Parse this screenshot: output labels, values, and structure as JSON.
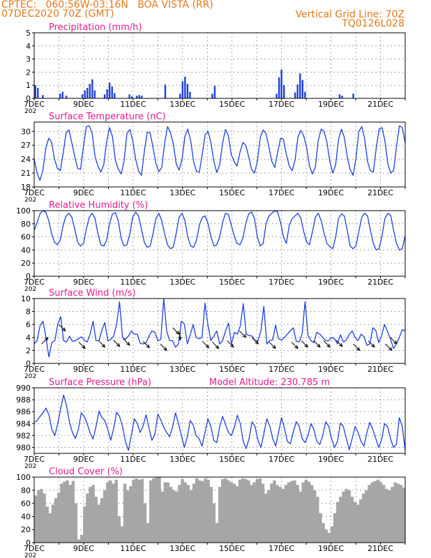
{
  "header": {
    "station_line": "CPTEC:   060:56W-03:16N   BOA VISTA (RR)",
    "date_line": "07DEC2020 70Z (GMT)",
    "grid_note": "Vertical Grid Line: 70Z",
    "model_code": "TQ0126L028"
  },
  "x_ticks": [
    "7DEC",
    "9DEC",
    "11DEC",
    "13DEC",
    "15DEC",
    "17DEC",
    "19DEC",
    "21DEC"
  ],
  "year_fragment": "202",
  "colors": {
    "header": "#e07a1a",
    "title": "#e8198b",
    "series": "#1f3fdc",
    "cloud": "#a6a6a6"
  },
  "chart_data": [
    {
      "type": "bar",
      "title": "Precipitation (mm/h)",
      "ylim": [
        0,
        5
      ],
      "yticks": [
        0,
        1,
        2,
        3,
        4,
        5
      ],
      "x_unit": "days since 7DEC",
      "bars": [
        [
          0.05,
          1.0
        ],
        [
          0.15,
          0.8
        ],
        [
          0.35,
          0.25
        ],
        [
          1.05,
          0.35
        ],
        [
          1.15,
          0.5
        ],
        [
          1.3,
          0.2
        ],
        [
          1.95,
          0.3
        ],
        [
          2.05,
          0.6
        ],
        [
          2.15,
          0.8
        ],
        [
          2.25,
          1.1
        ],
        [
          2.35,
          1.45
        ],
        [
          2.45,
          0.6
        ],
        [
          2.85,
          0.3
        ],
        [
          2.95,
          0.7
        ],
        [
          3.05,
          1.2
        ],
        [
          3.15,
          0.9
        ],
        [
          3.25,
          0.4
        ],
        [
          3.85,
          0.3
        ],
        [
          3.95,
          0.15
        ],
        [
          4.15,
          0.2
        ],
        [
          4.25,
          0.25
        ],
        [
          4.35,
          0.2
        ],
        [
          5.3,
          1.05
        ],
        [
          5.9,
          0.35
        ],
        [
          6.0,
          1.3
        ],
        [
          6.1,
          1.65
        ],
        [
          6.2,
          1.1
        ],
        [
          6.3,
          0.5
        ],
        [
          7.2,
          0.35
        ],
        [
          7.3,
          0.95
        ],
        [
          9.8,
          0.35
        ],
        [
          9.9,
          1.6
        ],
        [
          10.0,
          2.2
        ],
        [
          10.1,
          1.0
        ],
        [
          10.55,
          0.45
        ],
        [
          10.65,
          1.05
        ],
        [
          10.75,
          1.9
        ],
        [
          10.85,
          1.4
        ],
        [
          10.95,
          0.5
        ],
        [
          12.35,
          0.3
        ],
        [
          12.45,
          0.2
        ],
        [
          12.9,
          0.35
        ]
      ]
    },
    {
      "type": "line",
      "title": "Surface Temperature (nC)",
      "ylim": [
        18,
        32
      ],
      "yticks": [
        18,
        21,
        24,
        27,
        30
      ],
      "values": [
        24.0,
        21.0,
        19.4,
        21.6,
        26.3,
        28.5,
        27.7,
        24.0,
        22.0,
        21.5,
        25.3,
        29.6,
        30.3,
        27.5,
        24.5,
        22.0,
        21.8,
        26.8,
        31.0,
        31.2,
        29.6,
        24.5,
        22.5,
        21.2,
        22.8,
        27.8,
        30.8,
        28.9,
        23.8,
        21.9,
        20.8,
        23.5,
        29.5,
        30.4,
        28.0,
        24.0,
        21.5,
        20.5,
        25.6,
        29.8,
        29.7,
        26.5,
        23.0,
        21.3,
        22.2,
        27.3,
        31.0,
        29.8,
        27.3,
        23.0,
        21.6,
        23.9,
        28.9,
        30.5,
        28.0,
        23.5,
        21.3,
        21.2,
        25.2,
        29.3,
        30.0,
        27.5,
        23.5,
        21.1,
        22.8,
        27.5,
        30.4,
        29.0,
        25.0,
        23.5,
        22.5,
        25.5,
        27.6,
        27.0,
        24.5,
        21.8,
        21.0,
        23.5,
        28.7,
        30.3,
        29.5,
        26.5,
        23.5,
        22.2,
        25.5,
        28.5,
        28.3,
        25.0,
        22.5,
        21.5,
        23.8,
        28.8,
        30.2,
        29.0,
        26.5,
        22.5,
        20.8,
        22.3,
        28.0,
        30.5,
        30.0,
        27.6,
        23.5,
        21.0,
        22.8,
        28.3,
        30.5,
        28.7,
        24.5,
        21.8,
        20.5,
        24.0,
        30.0,
        31.0,
        28.5,
        23.5,
        21.5,
        21.2,
        26.3,
        30.5,
        30.8,
        28.0,
        23.0,
        21.0,
        21.5,
        26.7,
        31.2,
        30.8,
        27.5
      ]
    },
    {
      "type": "line",
      "title": "Relative Humidity (%)",
      "ylim": [
        0,
        100
      ],
      "yticks": [
        0,
        20,
        40,
        60,
        80,
        100
      ],
      "values": [
        70,
        82,
        95,
        100,
        98,
        85,
        65,
        52,
        48,
        55,
        78,
        92,
        96,
        90,
        72,
        52,
        46,
        50,
        72,
        90,
        96,
        88,
        65,
        48,
        46,
        55,
        80,
        95,
        97,
        85,
        58,
        46,
        48,
        65,
        90,
        98,
        92,
        72,
        52,
        44,
        46,
        65,
        88,
        96,
        85,
        65,
        48,
        42,
        44,
        66,
        90,
        96,
        85,
        60,
        46,
        44,
        55,
        78,
        90,
        92,
        80,
        60,
        46,
        48,
        60,
        82,
        96,
        94,
        78,
        62,
        50,
        48,
        58,
        80,
        95,
        98,
        88,
        60,
        46,
        50,
        80,
        92,
        96,
        100,
        98,
        82,
        60,
        50,
        78,
        88,
        92,
        96,
        88,
        68,
        52,
        48,
        68,
        90,
        96,
        85,
        66,
        50,
        45,
        42,
        60,
        88,
        95,
        92,
        70,
        46,
        42,
        46,
        68,
        90,
        96,
        92,
        70,
        50,
        40,
        42,
        62,
        88,
        96,
        93,
        70,
        50,
        40,
        42,
        62
      ]
    },
    {
      "type": "line",
      "title": "Surface Wind (m/s)",
      "ylim": [
        0,
        10
      ],
      "yticks": [
        0,
        2,
        4,
        6,
        8,
        10
      ],
      "values": [
        3.0,
        3.5,
        5.8,
        6.5,
        4.0,
        1.0,
        3.2,
        3.5,
        6.0,
        7.2,
        3.5,
        3.3,
        4.2,
        3.4,
        3.5,
        3.8,
        4.1,
        3.6,
        3.3,
        4.5,
        6.5,
        3.5,
        3.5,
        5.1,
        6.3,
        3.5,
        3.7,
        4.2,
        6.0,
        9.5,
        4.0,
        3.7,
        4.2,
        5.0,
        4.5,
        4.5,
        3.1,
        3.0,
        3.2,
        4.2,
        5.0,
        4.8,
        3.5,
        3.7,
        10.0,
        5.0,
        3.5,
        3.5,
        2.5,
        3.0,
        6.5,
        6.1,
        3.0,
        4.4,
        6.0,
        4.0,
        3.8,
        4.0,
        9.3,
        6.0,
        3.5,
        4.2,
        5.0,
        3.0,
        3.5,
        5.0,
        6.2,
        3.0,
        4.8,
        4.5,
        5.8,
        9.2,
        4.5,
        4.3,
        4.2,
        3.5,
        3.5,
        5.0,
        8.8,
        3.0,
        3.5,
        3.6,
        5.9,
        3.8,
        3.6,
        4.0,
        4.5,
        5.0,
        5.5,
        3.4,
        3.3,
        4.5,
        9.5,
        4.3,
        3.5,
        3.2,
        4.8,
        4.5,
        4.0,
        3.5,
        3.5,
        4.0,
        3.8,
        3.0,
        4.4,
        3.3,
        3.6,
        4.5,
        5.0,
        4.0,
        3.5,
        4.5,
        4.1,
        2.8,
        3.0,
        5.5,
        5.1,
        3.2,
        4.3,
        6.0,
        4.9,
        3.8,
        2.3,
        3.0,
        4.0,
        5.2,
        5.0
      ],
      "wind_vectors": [
        [
          0.3,
          3.0,
          45
        ],
        [
          1.0,
          6.0,
          315
        ],
        [
          1.8,
          3.3,
          315
        ],
        [
          2.6,
          3.5,
          315
        ],
        [
          3.2,
          3.6,
          315
        ],
        [
          3.6,
          3.8,
          315
        ],
        [
          4.4,
          3.4,
          315
        ],
        [
          5.1,
          3.0,
          315
        ],
        [
          5.6,
          5.5,
          315
        ],
        [
          5.9,
          5.0,
          270
        ],
        [
          6.8,
          3.4,
          315
        ],
        [
          7.2,
          3.3,
          315
        ],
        [
          7.8,
          3.5,
          315
        ],
        [
          8.3,
          5.0,
          315
        ],
        [
          8.8,
          4.0,
          315
        ],
        [
          9.5,
          3.3,
          315
        ],
        [
          10.4,
          3.3,
          315
        ],
        [
          10.8,
          3.5,
          315
        ],
        [
          11.3,
          3.5,
          315
        ],
        [
          11.7,
          3.5,
          315
        ],
        [
          12.2,
          3.6,
          315
        ],
        [
          12.9,
          3.0,
          315
        ],
        [
          13.5,
          3.5,
          315
        ],
        [
          14.2,
          3.0,
          315
        ],
        [
          14.4,
          4.0,
          315
        ]
      ]
    },
    {
      "type": "line",
      "title": "Surface Pressure (hPa)",
      "annotation": "Model Altitude: 230.785 m",
      "ylim": [
        979,
        990
      ],
      "yticks": [
        980,
        982,
        984,
        986,
        988,
        990
      ],
      "values": [
        984.2,
        984.5,
        985.2,
        985.8,
        986.6,
        985.5,
        983.0,
        982.0,
        984.0,
        986.5,
        988.8,
        987.0,
        984.2,
        982.5,
        981.5,
        983.0,
        985.8,
        985.2,
        984.0,
        982.4,
        981.4,
        983.5,
        986.1,
        985.0,
        984.5,
        983.0,
        981.2,
        983.2,
        985.9,
        985.2,
        983.5,
        981.0,
        979.5,
        982.0,
        984.8,
        984.0,
        982.5,
        983.6,
        985.5,
        983.2,
        981.2,
        982.2,
        985.6,
        984.6,
        983.4,
        982.5,
        981.8,
        983.4,
        985.8,
        984.0,
        982.0,
        980.0,
        981.8,
        984.5,
        983.8,
        982.0,
        981.5,
        980.2,
        982.5,
        984.8,
        983.5,
        981.2,
        980.8,
        983.5,
        985.2,
        983.8,
        982.5,
        982.0,
        983.4,
        985.4,
        984.0,
        981.0,
        979.8,
        981.5,
        984.3,
        983.5,
        981.2,
        980.0,
        982.3,
        984.8,
        983.6,
        981.5,
        980.2,
        982.5,
        985.0,
        983.2,
        981.0,
        980.6,
        982.6,
        984.3,
        983.5,
        981.5,
        980.8,
        982.0,
        984.0,
        983.0,
        981.0,
        980.5,
        982.0,
        984.3,
        983.6,
        981.5,
        980.0,
        981.0,
        984.1,
        983.5,
        981.5,
        979.6,
        981.5,
        983.5,
        982.5,
        981.0,
        980.2,
        982.5,
        984.2,
        983.0,
        981.5,
        980.0,
        981.3,
        984.0,
        983.5,
        981.5,
        980.0,
        980.5,
        985.0,
        983.5,
        979.5
      ]
    },
    {
      "type": "area",
      "title": "Cloud Cover (%)",
      "ylim": [
        0,
        100
      ],
      "yticks": [
        0,
        20,
        40,
        60,
        80,
        100
      ],
      "values": [
        72,
        80,
        82,
        75,
        55,
        45,
        58,
        68,
        76,
        90,
        93,
        95,
        88,
        94,
        60,
        5,
        12,
        55,
        75,
        85,
        88,
        70,
        58,
        68,
        80,
        92,
        95,
        90,
        96,
        40,
        25,
        90,
        80,
        86,
        96,
        98,
        96,
        97,
        60,
        30,
        95,
        98,
        100,
        100,
        78,
        92,
        92,
        85,
        80,
        78,
        88,
        97,
        92,
        88,
        80,
        90,
        98,
        95,
        94,
        98,
        96,
        85,
        60,
        30,
        85,
        97,
        98,
        95,
        92,
        90,
        86,
        96,
        98,
        97,
        95,
        88,
        92,
        97,
        98,
        90,
        75,
        80,
        90,
        95,
        88,
        85,
        82,
        88,
        92,
        94,
        95,
        88,
        78,
        92,
        96,
        93,
        88,
        80,
        70,
        45,
        30,
        20,
        15,
        25,
        45,
        62,
        70,
        78,
        82,
        80,
        70,
        62,
        58,
        66,
        75,
        80,
        88,
        92,
        94,
        96,
        92,
        88,
        82,
        80,
        85,
        92,
        90,
        88,
        84
      ]
    }
  ]
}
